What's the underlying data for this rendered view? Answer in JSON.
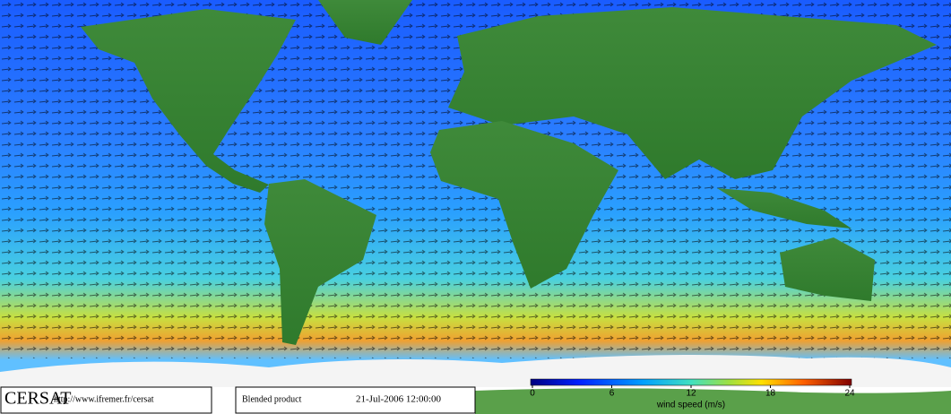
{
  "logo": "CERSAT",
  "url": "http://www.ifremer.fr/cersat",
  "product": "Blended product",
  "date": "21-Jul-2006 12:00:00",
  "colorbar": {
    "label": "wind speed (m/s)",
    "range": [
      0,
      24
    ],
    "ticks": [
      0,
      6,
      12,
      18,
      24
    ]
  }
}
